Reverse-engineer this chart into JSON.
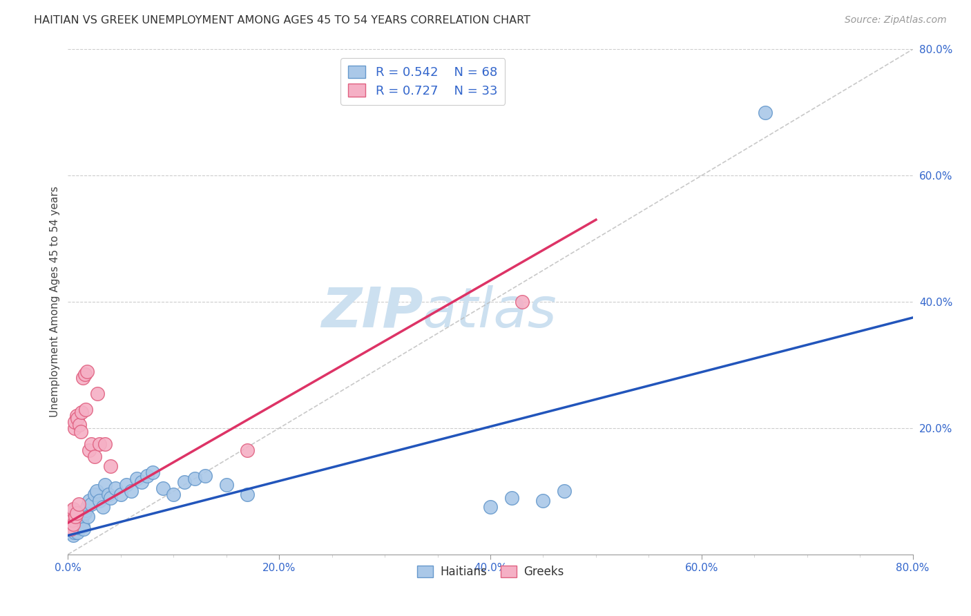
{
  "title": "HAITIAN VS GREEK UNEMPLOYMENT AMONG AGES 45 TO 54 YEARS CORRELATION CHART",
  "source": "Source: ZipAtlas.com",
  "ylabel": "Unemployment Among Ages 45 to 54 years",
  "xlim": [
    0.0,
    0.8
  ],
  "ylim": [
    0.0,
    0.8
  ],
  "xtick_major": [
    0.0,
    0.2,
    0.4,
    0.6,
    0.8
  ],
  "xtick_minor": [
    0.05,
    0.1,
    0.15,
    0.25,
    0.3,
    0.35,
    0.45,
    0.5,
    0.55,
    0.65,
    0.7,
    0.75
  ],
  "ytick_vals": [
    0.2,
    0.4,
    0.6,
    0.8
  ],
  "ytick_labels": [
    "20.0%",
    "40.0%",
    "60.0%",
    "80.0%"
  ],
  "haitian_color": "#aac8e8",
  "greek_color": "#f5b0c5",
  "haitian_edge": "#6699cc",
  "greek_edge": "#e06080",
  "regression_blue": "#2255bb",
  "regression_pink": "#dd3366",
  "diagonal_color": "#bbbbbb",
  "watermark_color": "#cce0f0",
  "watermark_text": "ZIPatlas",
  "legend_r_haitian": "R = 0.542",
  "legend_n_haitian": "N = 68",
  "legend_r_greek": "R = 0.727",
  "legend_n_greek": "N = 33",
  "legend_text_color": "#3366cc",
  "haitian_x": [
    0.001,
    0.001,
    0.001,
    0.002,
    0.002,
    0.002,
    0.003,
    0.003,
    0.003,
    0.003,
    0.004,
    0.004,
    0.004,
    0.004,
    0.005,
    0.005,
    0.005,
    0.005,
    0.006,
    0.006,
    0.006,
    0.007,
    0.007,
    0.007,
    0.008,
    0.008,
    0.009,
    0.009,
    0.01,
    0.01,
    0.011,
    0.012,
    0.013,
    0.014,
    0.015,
    0.016,
    0.017,
    0.018,
    0.019,
    0.02,
    0.022,
    0.025,
    0.027,
    0.03,
    0.033,
    0.035,
    0.038,
    0.04,
    0.045,
    0.05,
    0.055,
    0.06,
    0.065,
    0.07,
    0.075,
    0.08,
    0.09,
    0.1,
    0.11,
    0.12,
    0.13,
    0.15,
    0.17,
    0.4,
    0.42,
    0.45,
    0.47,
    0.66
  ],
  "haitian_y": [
    0.045,
    0.05,
    0.055,
    0.04,
    0.048,
    0.058,
    0.035,
    0.042,
    0.052,
    0.06,
    0.038,
    0.045,
    0.055,
    0.065,
    0.03,
    0.04,
    0.05,
    0.06,
    0.035,
    0.048,
    0.062,
    0.038,
    0.052,
    0.068,
    0.042,
    0.058,
    0.035,
    0.055,
    0.042,
    0.065,
    0.05,
    0.06,
    0.055,
    0.045,
    0.04,
    0.065,
    0.07,
    0.075,
    0.06,
    0.085,
    0.08,
    0.095,
    0.1,
    0.085,
    0.075,
    0.11,
    0.095,
    0.09,
    0.105,
    0.095,
    0.11,
    0.1,
    0.12,
    0.115,
    0.125,
    0.13,
    0.105,
    0.095,
    0.115,
    0.12,
    0.125,
    0.11,
    0.095,
    0.075,
    0.09,
    0.085,
    0.1,
    0.7
  ],
  "greek_x": [
    0.001,
    0.001,
    0.002,
    0.002,
    0.003,
    0.003,
    0.004,
    0.004,
    0.005,
    0.005,
    0.006,
    0.006,
    0.007,
    0.008,
    0.008,
    0.009,
    0.01,
    0.011,
    0.012,
    0.013,
    0.014,
    0.016,
    0.017,
    0.018,
    0.02,
    0.022,
    0.025,
    0.028,
    0.03,
    0.035,
    0.04,
    0.17,
    0.43
  ],
  "greek_y": [
    0.05,
    0.06,
    0.045,
    0.055,
    0.04,
    0.065,
    0.055,
    0.07,
    0.048,
    0.072,
    0.2,
    0.21,
    0.06,
    0.065,
    0.22,
    0.215,
    0.08,
    0.205,
    0.195,
    0.225,
    0.28,
    0.285,
    0.23,
    0.29,
    0.165,
    0.175,
    0.155,
    0.255,
    0.175,
    0.175,
    0.14,
    0.165,
    0.4
  ]
}
